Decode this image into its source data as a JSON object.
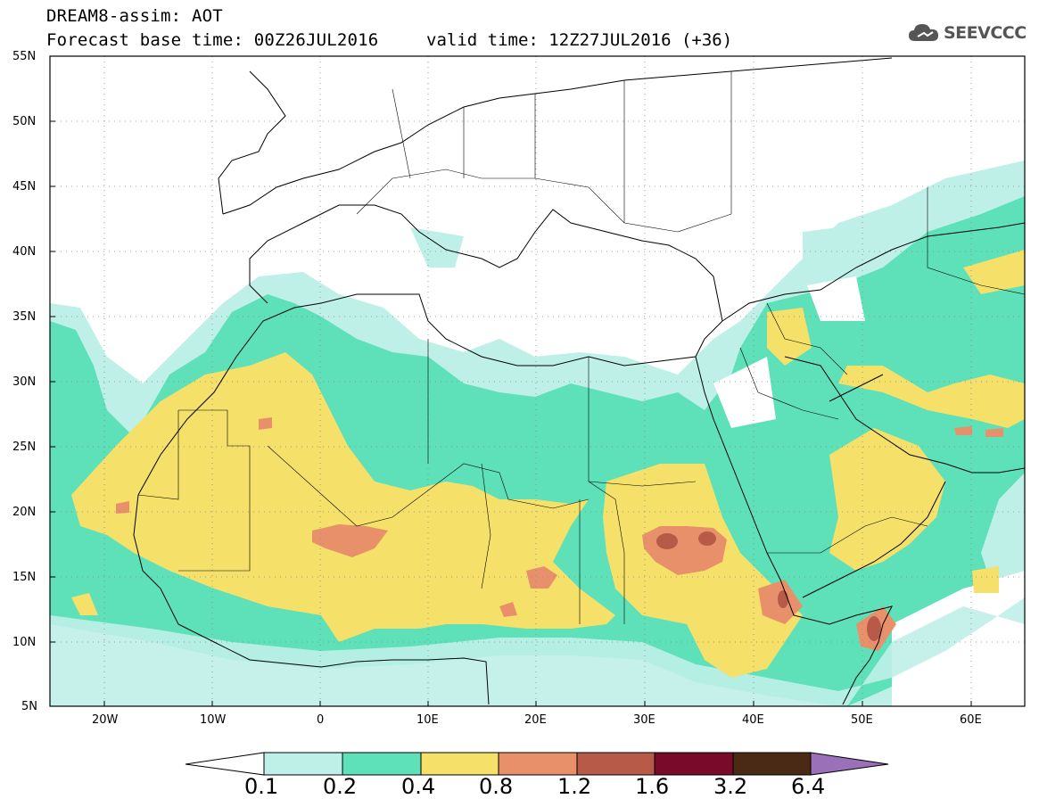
{
  "header": {
    "title": "DREAM8-assim: AOT",
    "base_time": "Forecast base time: 00Z26JUL2016",
    "valid_time": "valid time: 12Z27JUL2016 (+36)"
  },
  "logo": {
    "text": "SEEVCCC",
    "icon": "cloud-icon"
  },
  "map": {
    "lat_labels": [
      "55N",
      "50N",
      "45N",
      "40N",
      "35N",
      "30N",
      "25N",
      "20N",
      "15N",
      "10N",
      "5N"
    ],
    "lon_labels": [
      "20W",
      "10W",
      "0",
      "10E",
      "20E",
      "30E",
      "40E",
      "50E",
      "60E"
    ],
    "lon_range": [
      -25,
      65
    ],
    "lat_range": [
      5,
      55
    ],
    "grid": true
  },
  "colorbar": {
    "colors": [
      "#ffffff",
      "#bff0e8",
      "#5ee0b8",
      "#f5e06a",
      "#e8906a",
      "#b85a48",
      "#7a0a2a",
      "#4a2a14",
      "#9a70b8"
    ],
    "labels": [
      "0.1",
      "0.2",
      "0.4",
      "0.8",
      "1.2",
      "1.6",
      "3.2",
      "6.4"
    ]
  }
}
